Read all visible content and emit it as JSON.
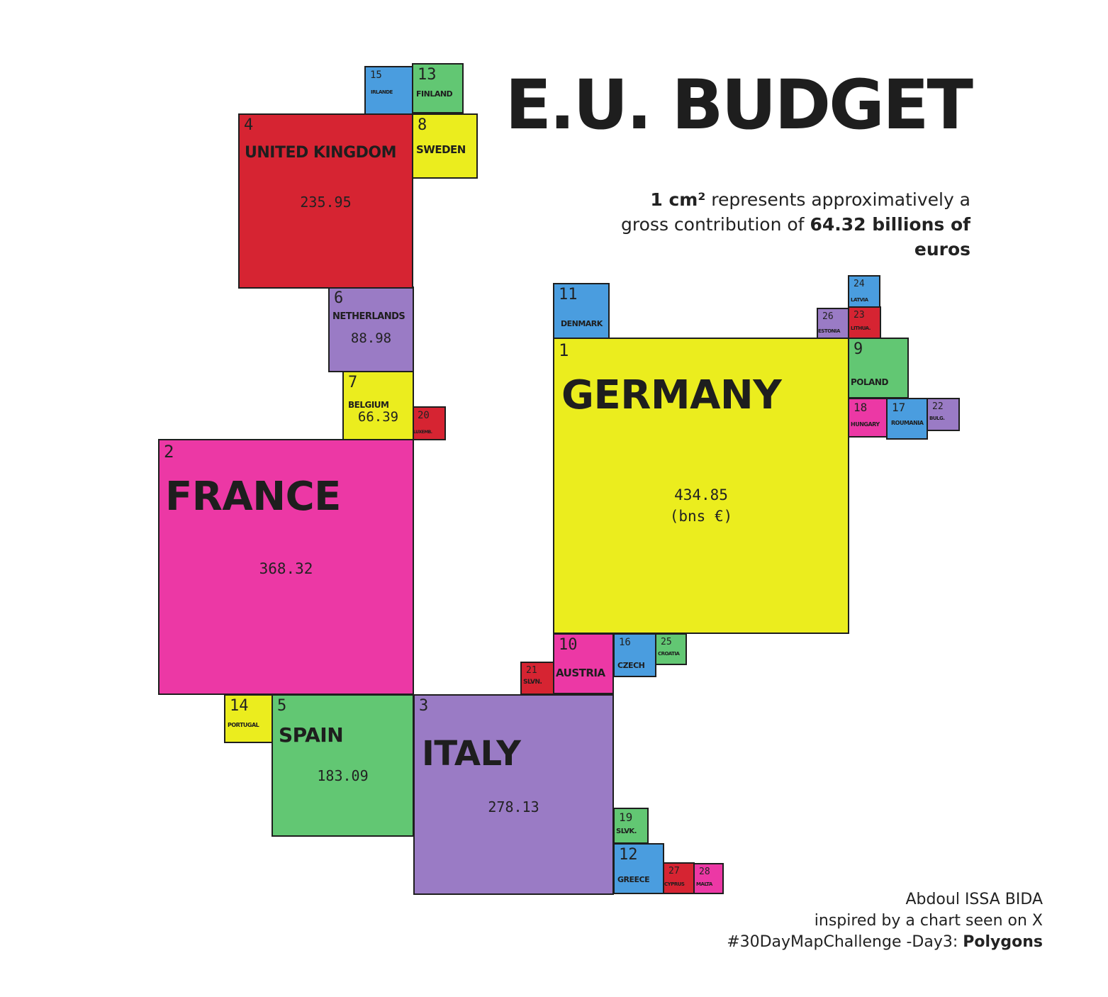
{
  "title": "E.U. BUDGET",
  "subtitle": {
    "part1_bold": "1 cm²",
    "part2": " represents approximatively a gross contribution of ",
    "part3_bold": "64.32 billions of euros"
  },
  "credits": {
    "line1": "Abdoul ISSA BIDA",
    "line2": "inspired by a chart seen on X",
    "line3_prefix": "#30DayMapChallenge -Day3: ",
    "line3_bold": "Polygons"
  },
  "unit_label": "(bns €)",
  "colors": {
    "yellow": "#ebed1e",
    "pink": "#ec38a5",
    "red": "#d62432",
    "purple": "#9a7bc5",
    "green": "#62c773",
    "blue": "#4a9ddf",
    "border": "#1e1e1e"
  },
  "countries": [
    {
      "rank": 1,
      "label": "GERMANY",
      "value": "434.85",
      "color": "yellow"
    },
    {
      "rank": 2,
      "label": "FRANCE",
      "value": "368.32",
      "color": "pink"
    },
    {
      "rank": 3,
      "label": "ITALY",
      "value": "278.13",
      "color": "purple"
    },
    {
      "rank": 4,
      "label": "UNITED KINGDOM",
      "value": "235.95",
      "color": "red"
    },
    {
      "rank": 5,
      "label": "SPAIN",
      "value": "183.09",
      "color": "green"
    },
    {
      "rank": 6,
      "label": "NETHERLANDS",
      "value": "88.98",
      "color": "purple"
    },
    {
      "rank": 7,
      "label": "BELGIUM",
      "value": "66.39",
      "color": "yellow"
    },
    {
      "rank": 8,
      "label": "SWEDEN",
      "value": null,
      "color": "yellow"
    },
    {
      "rank": 9,
      "label": "POLAND",
      "value": null,
      "color": "green"
    },
    {
      "rank": 10,
      "label": "AUSTRIA",
      "value": null,
      "color": "pink"
    },
    {
      "rank": 11,
      "label": "DENMARK",
      "value": null,
      "color": "blue"
    },
    {
      "rank": 12,
      "label": "GREECE",
      "value": null,
      "color": "blue"
    },
    {
      "rank": 13,
      "label": "FINLAND",
      "value": null,
      "color": "green"
    },
    {
      "rank": 14,
      "label": "PORTUGAL",
      "value": null,
      "color": "yellow"
    },
    {
      "rank": 15,
      "label": "IRLANDE",
      "value": null,
      "color": "blue"
    },
    {
      "rank": 16,
      "label": "CZECH",
      "value": null,
      "color": "blue"
    },
    {
      "rank": 17,
      "label": "ROUMANIA",
      "value": null,
      "color": "blue"
    },
    {
      "rank": 18,
      "label": "HUNGARY",
      "value": null,
      "color": "pink"
    },
    {
      "rank": 19,
      "label": "SLVK.",
      "value": null,
      "color": "green"
    },
    {
      "rank": 20,
      "label": "LUXEMB.",
      "value": null,
      "color": "red"
    },
    {
      "rank": 21,
      "label": "SLVN.",
      "value": null,
      "color": "red"
    },
    {
      "rank": 22,
      "label": "BULG.",
      "value": null,
      "color": "purple"
    },
    {
      "rank": 23,
      "label": "LITHUA.",
      "value": null,
      "color": "red"
    },
    {
      "rank": 24,
      "label": "LATVIA",
      "value": null,
      "color": "blue"
    },
    {
      "rank": 25,
      "label": "CROATIA",
      "value": null,
      "color": "green"
    },
    {
      "rank": 26,
      "label": "ESTONIA",
      "value": null,
      "color": "purple"
    },
    {
      "rank": 27,
      "label": "CYPRUS",
      "value": null,
      "color": "red"
    },
    {
      "rank": 28,
      "label": "MALTA",
      "value": null,
      "color": "pink"
    }
  ]
}
